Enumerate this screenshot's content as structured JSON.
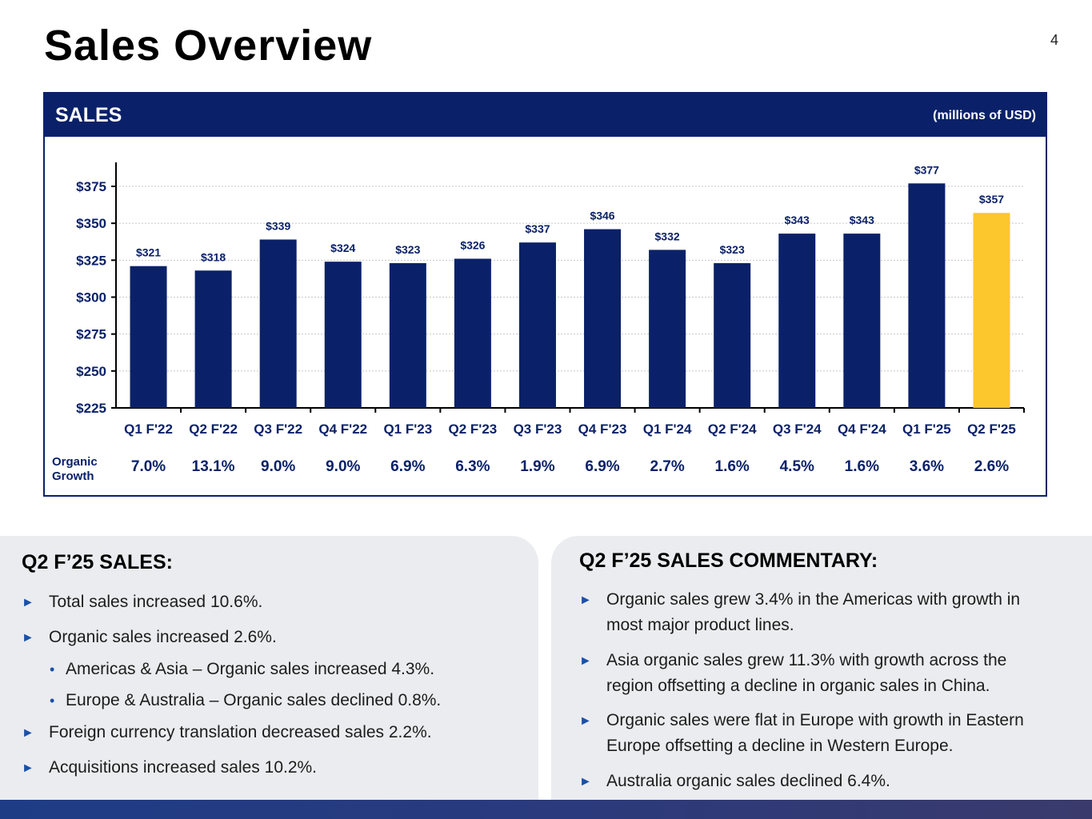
{
  "page": {
    "title": "Sales Overview",
    "number": "4"
  },
  "panel": {
    "title": "SALES",
    "unit": "(millions of USD)",
    "growth_label_line1": "Organic",
    "growth_label_line2": "Growth"
  },
  "chart_data": {
    "type": "bar",
    "title": "SALES",
    "ylabel": "(millions of USD)",
    "categories": [
      "Q1 F'22",
      "Q2 F'22",
      "Q3 F'22",
      "Q4 F'22",
      "Q1 F'23",
      "Q2 F'23",
      "Q3 F'23",
      "Q4 F'23",
      "Q1 F'24",
      "Q2 F'24",
      "Q3 F'24",
      "Q4 F'24",
      "Q1 F'25",
      "Q2 F'25"
    ],
    "values": [
      321,
      318,
      339,
      324,
      323,
      326,
      337,
      346,
      332,
      323,
      343,
      343,
      377,
      357
    ],
    "value_labels": [
      "$321",
      "$318",
      "$339",
      "$324",
      "$323",
      "$326",
      "$337",
      "$346",
      "$332",
      "$323",
      "$343",
      "$343",
      "$377",
      "$357"
    ],
    "organic_growth": [
      "7.0%",
      "13.1%",
      "9.0%",
      "9.0%",
      "6.9%",
      "6.3%",
      "1.9%",
      "6.9%",
      "2.7%",
      "1.6%",
      "4.5%",
      "1.6%",
      "3.6%",
      "2.6%"
    ],
    "ylim": [
      225,
      385
    ],
    "yticks": [
      225,
      250,
      275,
      300,
      325,
      350,
      375
    ],
    "ytick_labels": [
      "$225",
      "$250",
      "$275",
      "$300",
      "$325",
      "$350",
      "$375"
    ],
    "colors": {
      "bar": "#0a2169",
      "highlight": "#fcc62d",
      "grid": "#c8c8c8",
      "axis": "#000000"
    },
    "highlight_index": 13
  },
  "left_card": {
    "heading": "Q2 F’25 SALES:",
    "bullets": [
      "Total sales increased 10.6%.",
      "Organic sales increased 2.6%.",
      "Foreign currency translation decreased sales 2.2%.",
      "Acquisitions increased sales 10.2%."
    ],
    "sub_bullets": [
      "Americas & Asia – Organic sales increased 4.3%.",
      "Europe & Australia – Organic sales declined 0.8%."
    ]
  },
  "right_card": {
    "heading": "Q2 F’25 SALES COMMENTARY:",
    "bullets": [
      {
        "line1": "Organic sales grew 3.4% in the Americas with growth in",
        "line2": "most major product lines."
      },
      {
        "line1": "Asia organic sales grew 11.3% with growth across the",
        "line2": "region offsetting a decline in organic sales in China."
      },
      {
        "line1": "Organic sales were flat in Europe with growth in Eastern",
        "line2": "Europe offsetting a decline in Western Europe."
      },
      {
        "line1": "Australia organic sales declined 6.4%.",
        "line2": ""
      }
    ]
  },
  "icons": {
    "bullet_arrow": "►",
    "sub_bullet": "•"
  }
}
